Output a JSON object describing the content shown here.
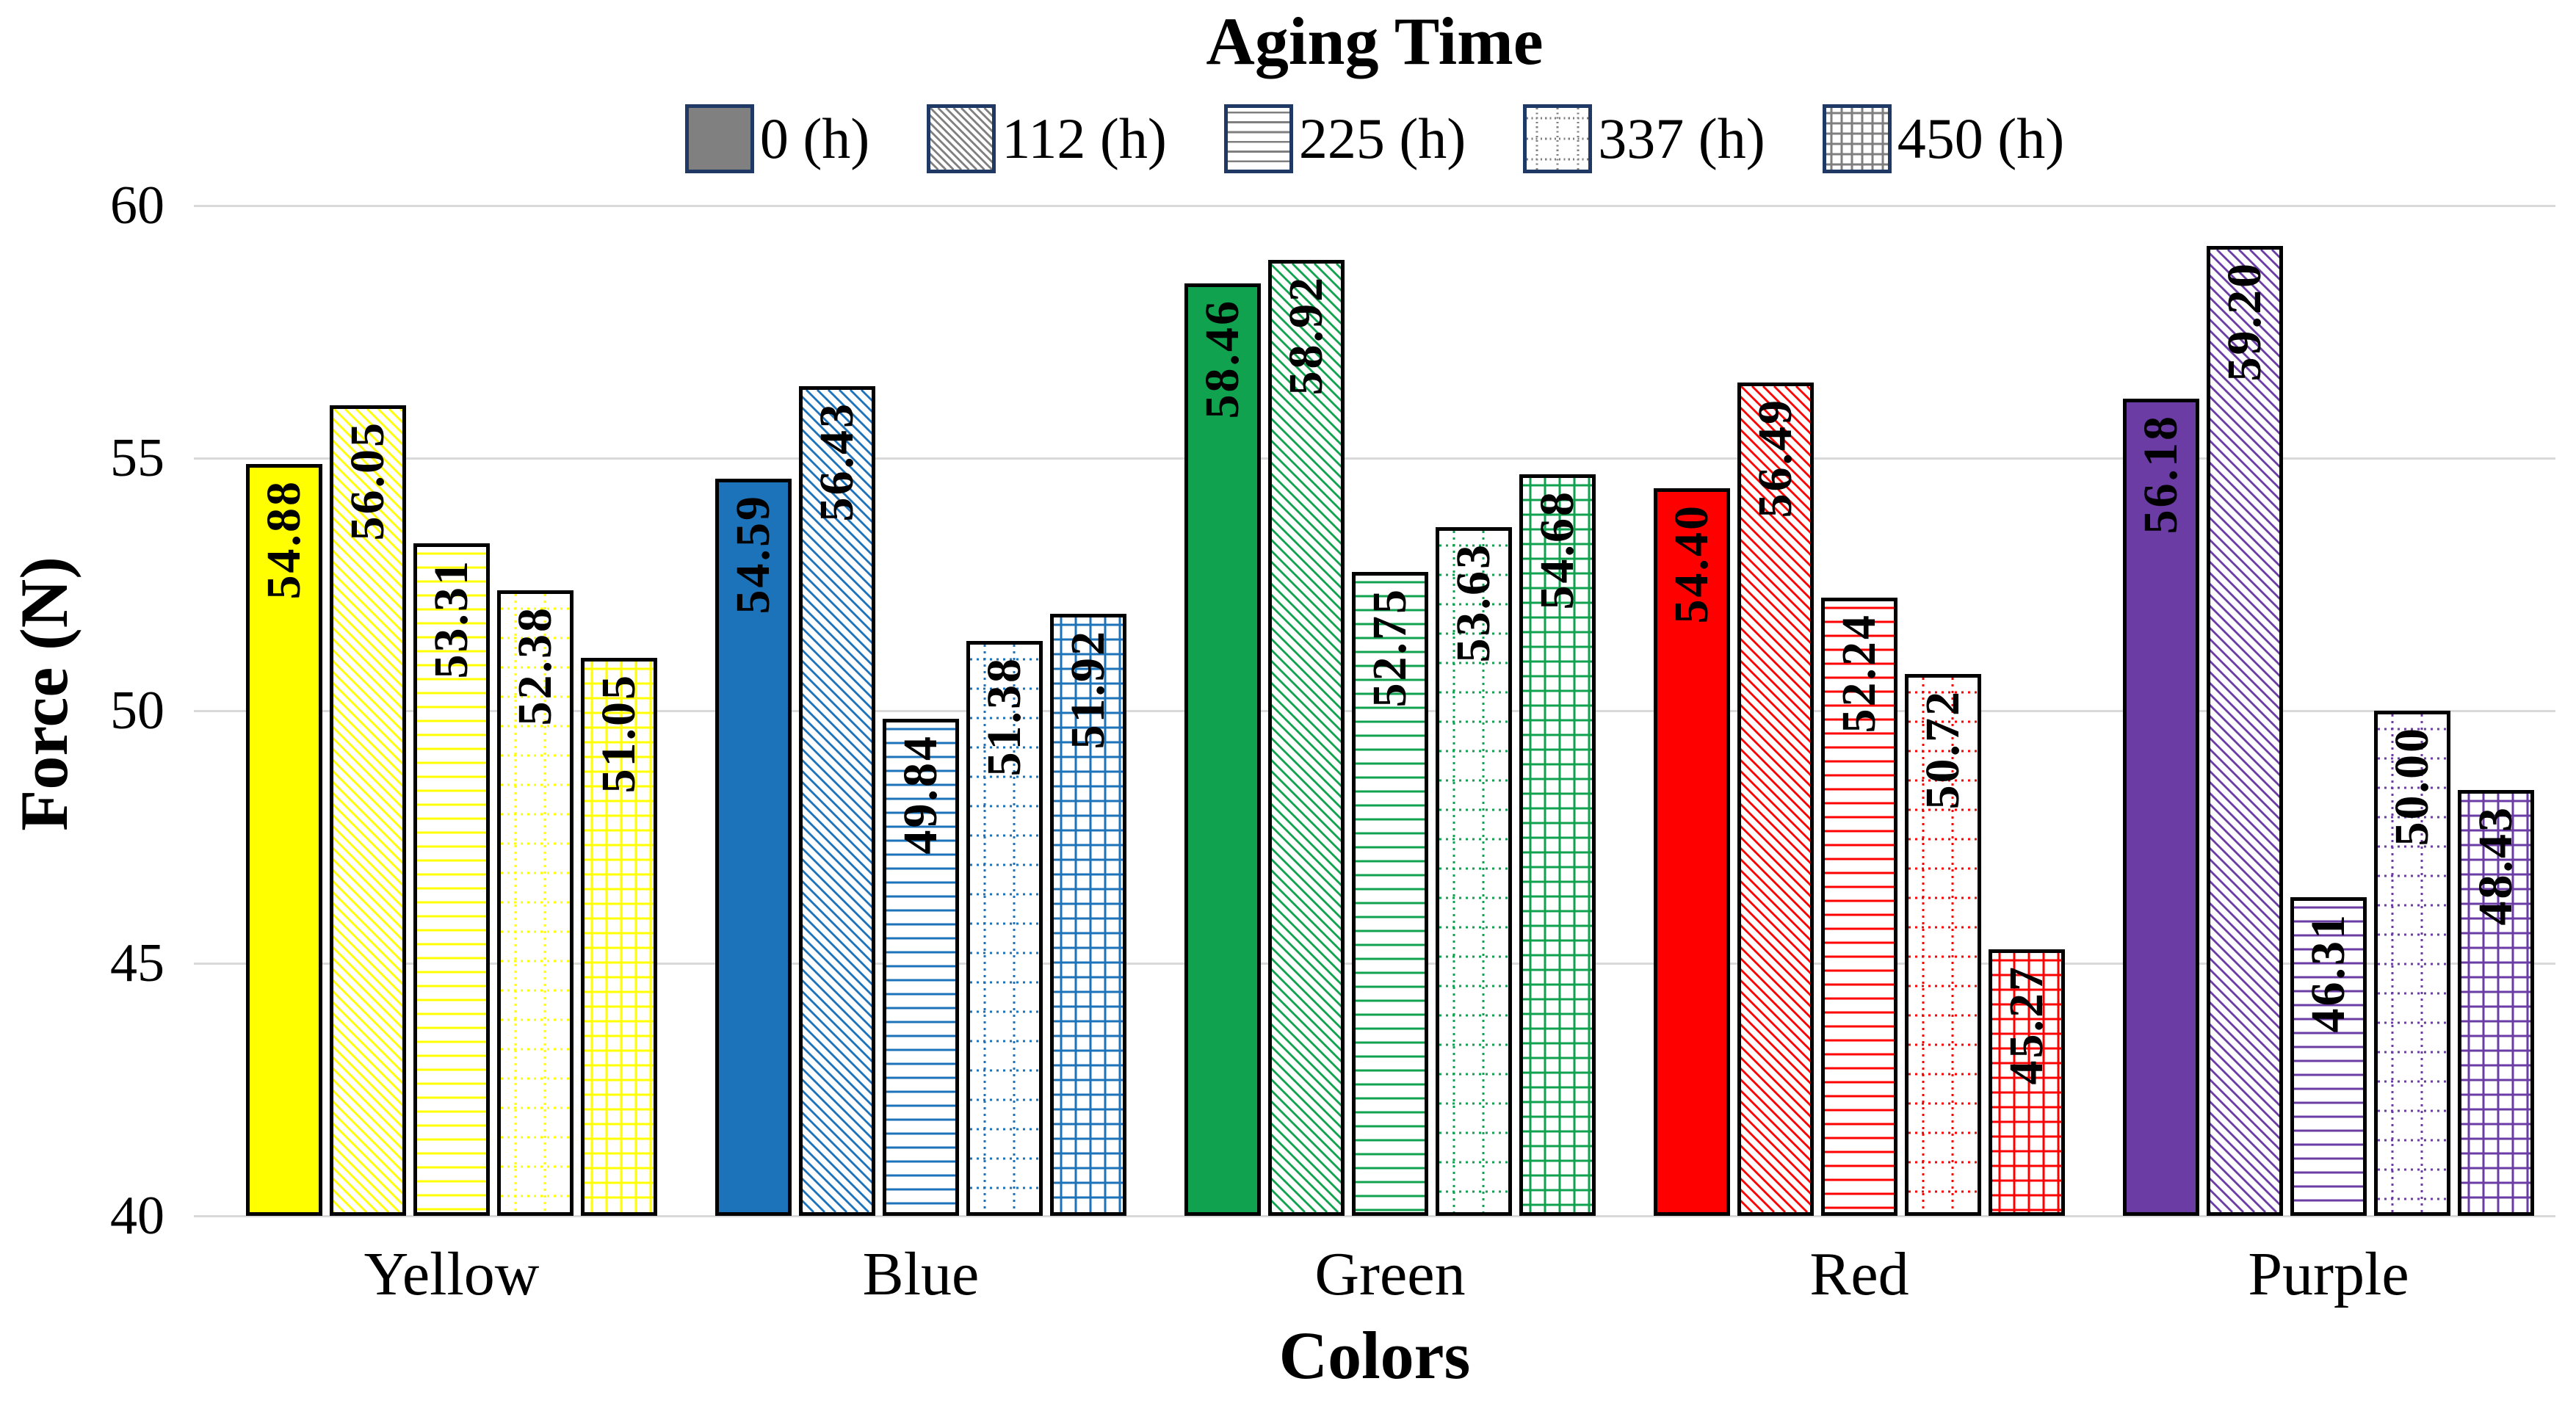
{
  "chart_data": {
    "type": "bar",
    "legend_title": "Aging Time",
    "xlabel": "Colors",
    "ylabel": "Force (N)",
    "ylim": [
      40,
      60
    ],
    "yticks": [
      40,
      45,
      50,
      55,
      60
    ],
    "ytick_labels": [
      "40",
      "45",
      "50",
      "55",
      "60"
    ],
    "grid": "horizontal",
    "grid_color": "#D9D9D9",
    "legend_position": "top",
    "legend_swatch_fill": "#808080",
    "legend_pattern_color": "#7F7F7F",
    "legend_border_color": "#1F3864",
    "bar_border_color": "#000000",
    "background_color": "#FFFFFF",
    "categories": [
      "Yellow",
      "Blue",
      "Green",
      "Red",
      "Purple"
    ],
    "category_colors": [
      "#FFFF00",
      "#1C73B9",
      "#10A24F",
      "#FF0000",
      "#6B3CA4"
    ],
    "series": [
      {
        "name": "0 (h)",
        "pattern": "solid",
        "values": [
          54.88,
          54.59,
          58.46,
          54.4,
          56.18
        ],
        "labels": [
          "54.88",
          "54.59",
          "58.46",
          "54.40",
          "56.18"
        ]
      },
      {
        "name": "112 (h)",
        "pattern": "diagonal",
        "values": [
          56.05,
          56.43,
          58.92,
          56.49,
          59.2
        ],
        "labels": [
          "56.05",
          "56.43",
          "58.92",
          "56.49",
          "59.20"
        ]
      },
      {
        "name": "225 (h)",
        "pattern": "horizontal",
        "values": [
          53.31,
          49.84,
          52.75,
          52.24,
          46.31
        ],
        "labels": [
          "53.31",
          "49.84",
          "52.75",
          "52.24",
          "46.31"
        ]
      },
      {
        "name": "337 (h)",
        "pattern": "dot-grid",
        "values": [
          52.38,
          51.38,
          53.63,
          50.72,
          50.0
        ],
        "labels": [
          "52.38",
          "51.38",
          "53.63",
          "50.72",
          "50.00"
        ]
      },
      {
        "name": "450 (h)",
        "pattern": "grid",
        "values": [
          51.05,
          51.92,
          54.68,
          45.27,
          48.43
        ],
        "labels": [
          "51.05",
          "51.92",
          "54.68",
          "45.27",
          "48.43"
        ]
      }
    ]
  }
}
